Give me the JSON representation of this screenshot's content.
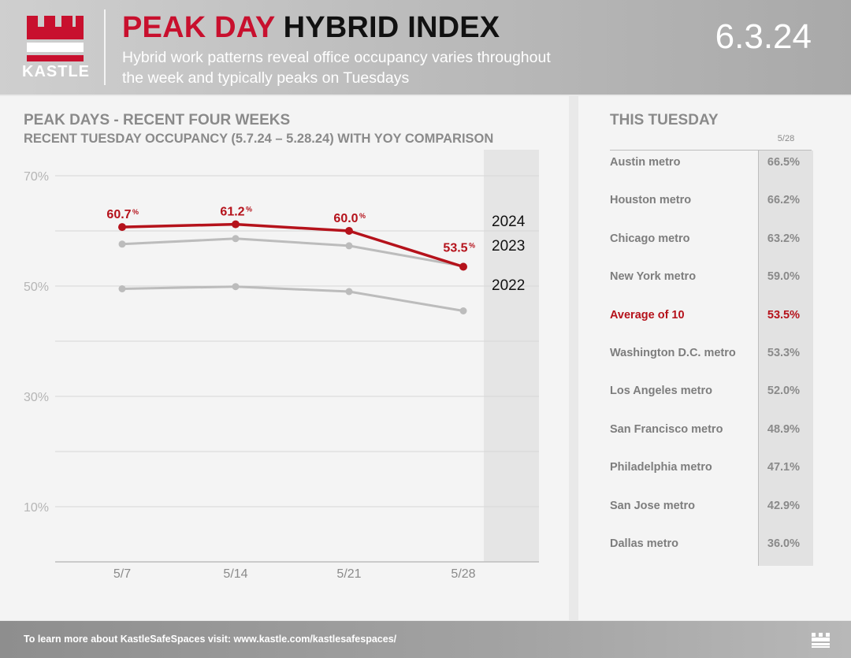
{
  "brand": {
    "name": "KASTLE"
  },
  "header": {
    "title_red": "PEAK DAY",
    "title_black": "HYBRID INDEX",
    "subtitle": "Hybrid work patterns reveal office occupancy varies throughout the week and typically peaks on Tuesdays",
    "date": "6.3.24"
  },
  "left_panel": {
    "title": "PEAK DAYS - RECENT FOUR WEEKS",
    "subtitle": "RECENT TUESDAY OCCUPANCY (5.7.24 – 5.28.24) WITH YOY COMPARISON"
  },
  "chart_data": {
    "type": "line",
    "title": "PEAK DAYS - RECENT FOUR WEEKS",
    "subtitle": "RECENT TUESDAY OCCUPANCY (5.7.24 – 5.28.24) WITH YOY COMPARISON",
    "categories": [
      "5/7",
      "5/14",
      "5/21",
      "5/28"
    ],
    "y_ticks": [
      "70%",
      "50%",
      "30%",
      "10%"
    ],
    "ylim": [
      0,
      70
    ],
    "grid": true,
    "series": [
      {
        "name": "2024",
        "values": [
          60.7,
          61.2,
          60.0,
          53.5
        ],
        "color": "#b5121b",
        "labels": [
          "60.7",
          "61.2",
          "60.0",
          "53.5"
        ]
      },
      {
        "name": "2023",
        "values": [
          57.6,
          58.6,
          57.3,
          53.6
        ],
        "color": "#bcbcbc"
      },
      {
        "name": "2022",
        "values": [
          49.5,
          49.9,
          49.0,
          45.5
        ],
        "color": "#bcbcbc"
      }
    ]
  },
  "right_panel": {
    "title": "THIS TUESDAY",
    "column_header": "5/28",
    "rows": [
      {
        "name": "Austin metro",
        "value": "66.5%"
      },
      {
        "name": "Houston metro",
        "value": "66.2%"
      },
      {
        "name": "Chicago metro",
        "value": "63.2%"
      },
      {
        "name": "New York metro",
        "value": "59.0%"
      },
      {
        "name": "Average of 10",
        "value": "53.5%",
        "highlight": true
      },
      {
        "name": "Washington D.C. metro",
        "value": "53.3%"
      },
      {
        "name": "Los Angeles metro",
        "value": "52.0%"
      },
      {
        "name": "San Francisco metro",
        "value": "48.9%"
      },
      {
        "name": "Philadelphia metro",
        "value": "47.1%"
      },
      {
        "name": "San Jose metro",
        "value": "42.9%"
      },
      {
        "name": "Dallas metro",
        "value": "36.0%"
      }
    ]
  },
  "footer": {
    "text": "To learn more about KastleSafeSpaces visit: www.kastle.com/kastlesafespaces/"
  },
  "colors": {
    "accent_red": "#c8102e",
    "gray": "#bcbcbc"
  }
}
